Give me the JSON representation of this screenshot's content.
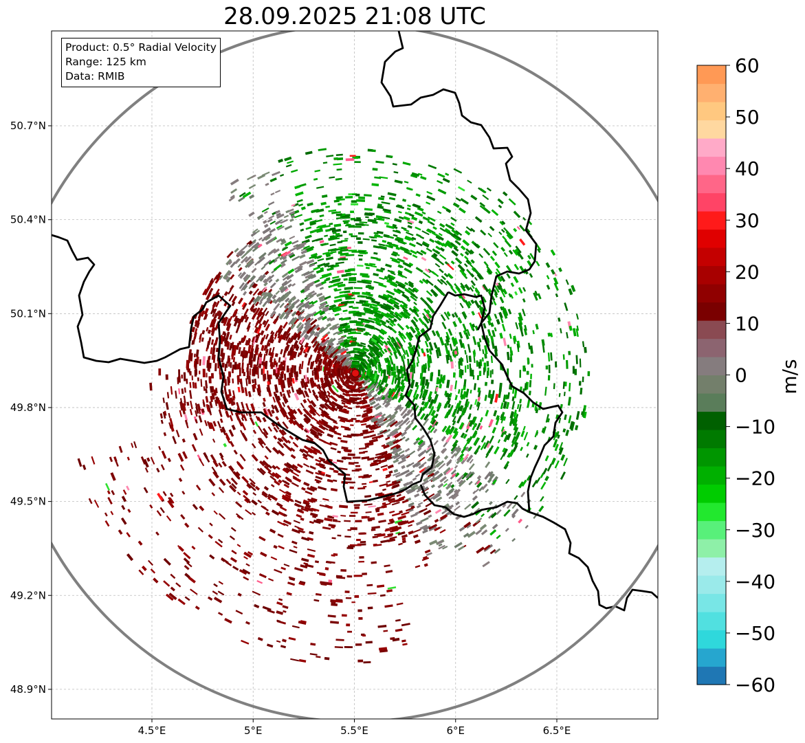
{
  "title": "28.09.2025 21:08 UTC",
  "info": {
    "product": "Product: 0.5° Radial Velocity",
    "range": "Range: 125 km",
    "data": "Data: RMIB"
  },
  "axes": {
    "lon_ticks": [
      "4.5°E",
      "5°E",
      "5.5°E",
      "6°E",
      "6.5°E"
    ],
    "lat_ticks": [
      "50.7°N",
      "50.4°N",
      "50.1°N",
      "49.8°N",
      "49.5°N",
      "49.2°N",
      "48.9°N"
    ],
    "lon_tick_values": [
      4.5,
      5.0,
      5.5,
      6.0,
      6.5
    ],
    "lat_tick_values": [
      50.7,
      50.4,
      50.1,
      49.8,
      49.5,
      49.2,
      48.9
    ],
    "lon_range": [
      4.0,
      7.0
    ],
    "lat_range": [
      48.8,
      51.0
    ]
  },
  "radar_site": {
    "lon": 5.505,
    "lat": 49.915
  },
  "colorbar": {
    "label": "m/s",
    "ticks": [
      "60",
      "50",
      "40",
      "30",
      "20",
      "10",
      "0",
      "−10",
      "−20",
      "−30",
      "−40",
      "−50",
      "−60"
    ],
    "tick_values": [
      60,
      50,
      40,
      30,
      20,
      10,
      0,
      -10,
      -20,
      -30,
      -40,
      -50,
      -60
    ],
    "range": [
      -60,
      60
    ],
    "colors": [
      "#1f77b4",
      "#26a6cf",
      "#2fd8dc",
      "#51e0e0",
      "#78e6e6",
      "#9aeaea",
      "#b5eeee",
      "#8ef0a8",
      "#58f07a",
      "#22e82e",
      "#00cc00",
      "#00b000",
      "#009600",
      "#007a00",
      "#006000",
      "#5a7d5a",
      "#737f6b",
      "#857c7e",
      "#8c6470",
      "#8a4a52",
      "#7a0000",
      "#900000",
      "#a80000",
      "#c40000",
      "#e00000",
      "#ff1a1a",
      "#ff4466",
      "#ff6688",
      "#ff88b0",
      "#ffaac8",
      "#ffd8a0",
      "#ffc880",
      "#ffb070",
      "#ff9955"
    ]
  },
  "colors": {
    "approach": "#008c00",
    "recede": "#7a0000",
    "near_zero": "#7e7a78",
    "range_ring": "#808080",
    "border": "#000000",
    "grid": "#bbbbbb"
  }
}
